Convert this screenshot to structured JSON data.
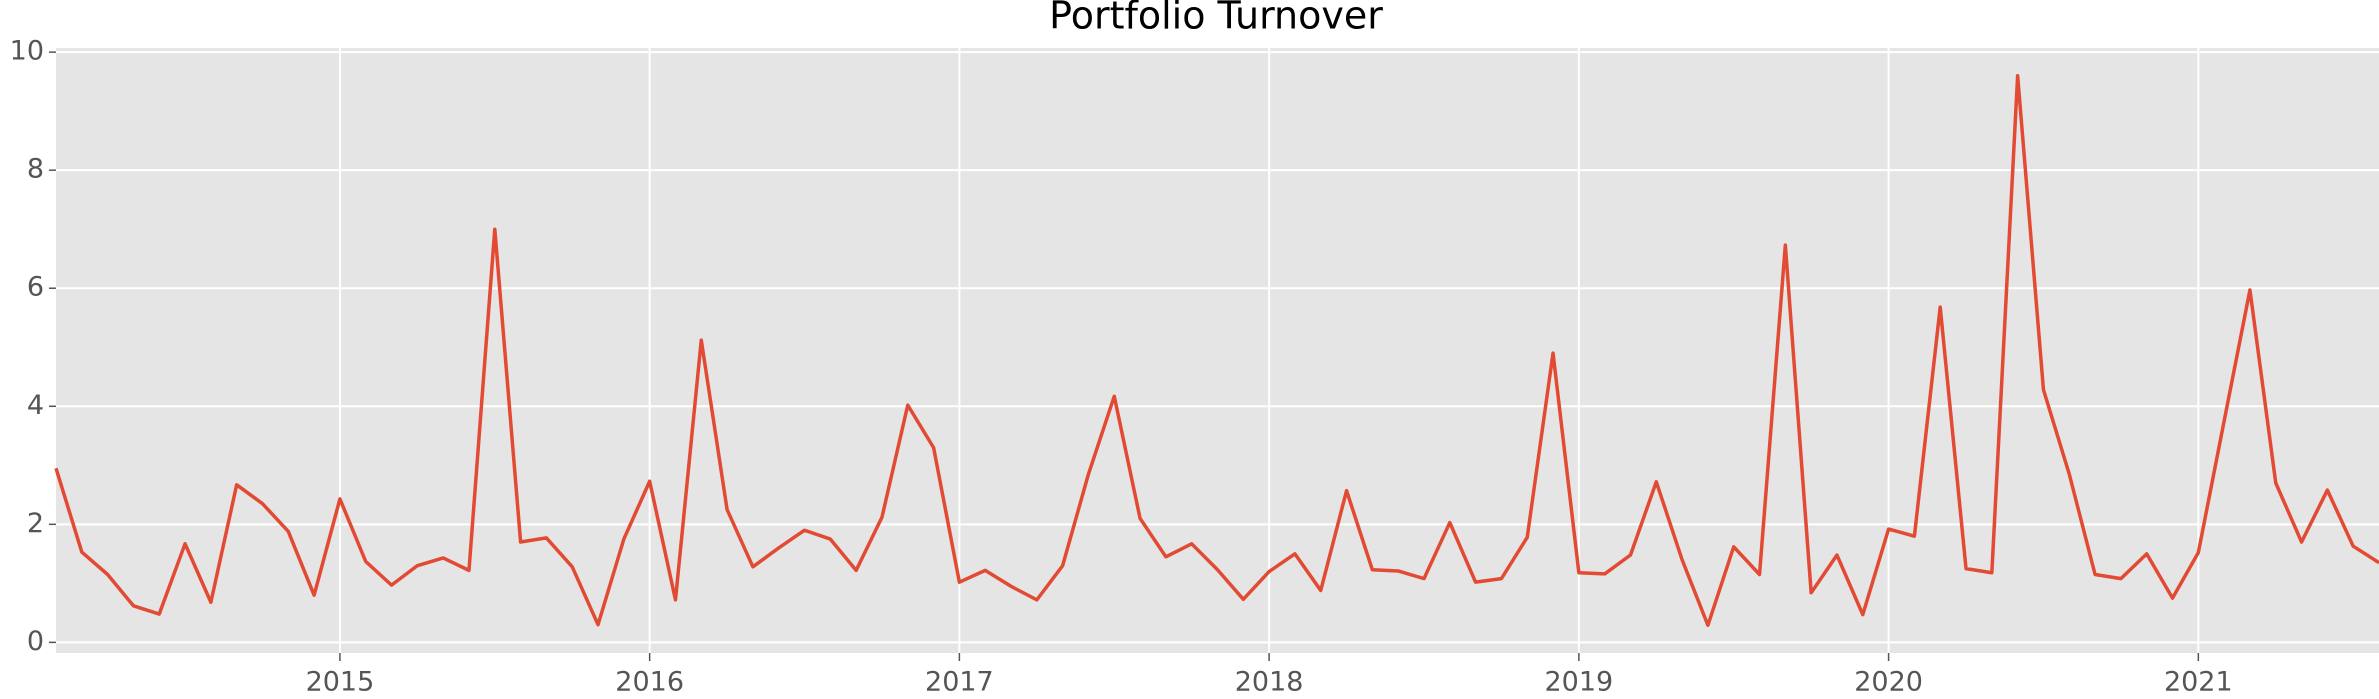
{
  "chart_data": {
    "type": "line",
    "title": "Portfolio Turnover",
    "x": [
      "2014-02",
      "2014-03",
      "2014-04",
      "2014-05",
      "2014-06",
      "2014-07",
      "2014-08",
      "2014-09",
      "2014-10",
      "2014-11",
      "2014-12",
      "2015-01",
      "2015-02",
      "2015-03",
      "2015-04",
      "2015-05",
      "2015-06",
      "2015-07",
      "2015-08",
      "2015-09",
      "2015-10",
      "2015-11",
      "2015-12",
      "2016-01",
      "2016-02",
      "2016-03",
      "2016-04",
      "2016-05",
      "2016-06",
      "2016-07",
      "2016-08",
      "2016-09",
      "2016-10",
      "2016-11",
      "2016-12",
      "2017-01",
      "2017-02",
      "2017-03",
      "2017-04",
      "2017-05",
      "2017-06",
      "2017-07",
      "2017-08",
      "2017-09",
      "2017-10",
      "2017-11",
      "2017-12",
      "2018-01",
      "2018-02",
      "2018-03",
      "2018-04",
      "2018-05",
      "2018-06",
      "2018-07",
      "2018-08",
      "2018-09",
      "2018-10",
      "2018-11",
      "2018-12",
      "2019-01",
      "2019-02",
      "2019-03",
      "2019-04",
      "2019-05",
      "2019-06",
      "2019-07",
      "2019-08",
      "2019-09",
      "2019-10",
      "2019-11",
      "2019-12",
      "2020-01",
      "2020-02",
      "2020-03",
      "2020-04",
      "2020-05",
      "2020-06",
      "2020-07",
      "2020-08",
      "2020-09",
      "2020-10",
      "2020-11",
      "2020-12",
      "2021-01",
      "2021-02",
      "2021-03",
      "2021-04",
      "2021-05",
      "2021-06",
      "2021-07",
      "2021-08"
    ],
    "series": [
      {
        "name": "Portfolio Turnover",
        "color": "#E24A33",
        "values": [
          2.95,
          1.53,
          1.15,
          0.62,
          0.48,
          1.67,
          0.68,
          2.67,
          2.35,
          1.88,
          0.8,
          2.43,
          1.37,
          0.97,
          1.3,
          1.43,
          1.22,
          7.0,
          1.7,
          1.77,
          1.28,
          0.3,
          1.75,
          2.73,
          0.72,
          5.12,
          2.25,
          1.28,
          1.6,
          1.9,
          1.75,
          1.22,
          2.12,
          4.02,
          3.3,
          1.02,
          1.22,
          0.95,
          0.72,
          1.3,
          2.85,
          4.17,
          2.1,
          1.45,
          1.67,
          1.23,
          0.73,
          1.2,
          1.5,
          0.88,
          2.57,
          1.23,
          1.21,
          1.08,
          2.03,
          1.02,
          1.08,
          1.78,
          4.9,
          1.18,
          1.16,
          1.48,
          2.72,
          1.4,
          0.29,
          1.62,
          1.15,
          6.73,
          0.84,
          1.48,
          0.47,
          1.92,
          1.8,
          5.68,
          1.25,
          1.18,
          9.6,
          4.28,
          2.85,
          1.15,
          1.08,
          1.5,
          0.75,
          1.52,
          3.75,
          5.97,
          2.7,
          1.7,
          2.58,
          1.63,
          1.35
        ]
      }
    ],
    "xlim": [
      "2014-02",
      "2021-08"
    ],
    "xticks": [
      {
        "value": "2015-01",
        "label": "2015"
      },
      {
        "value": "2016-01",
        "label": "2016"
      },
      {
        "value": "2017-01",
        "label": "2017"
      },
      {
        "value": "2018-01",
        "label": "2018"
      },
      {
        "value": "2019-01",
        "label": "2019"
      },
      {
        "value": "2020-01",
        "label": "2020"
      },
      {
        "value": "2021-01",
        "label": "2021"
      }
    ],
    "ylim": [
      -0.18,
      10.07
    ],
    "yticks": [
      0,
      2,
      4,
      6,
      8,
      10
    ],
    "grid": true
  }
}
